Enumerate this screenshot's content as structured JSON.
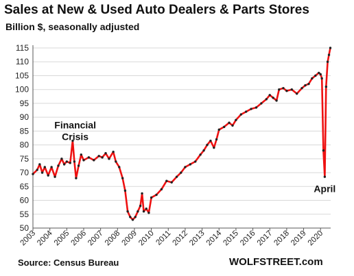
{
  "header": {
    "title": "Sales at New & Used Auto Dealers & Parts Stores",
    "subtitle": "Billion $, seasonally adjusted"
  },
  "footer": {
    "source": "Source: Census Bureau",
    "credit": "WOLFSTREET.com"
  },
  "colors": {
    "line": "#ee1111",
    "marker": "#222222",
    "grid": "#d8d8d8",
    "axis": "#555555"
  },
  "chart_data": {
    "type": "line",
    "title": "Sales at New & Used Auto Dealers & Parts Stores",
    "subtitle": "Billion $, seasonally adjusted",
    "xlabel": "",
    "ylabel": "",
    "ylim": [
      50,
      115
    ],
    "xlim": [
      2003,
      2020.6
    ],
    "yticks": [
      50,
      55,
      60,
      65,
      70,
      75,
      80,
      85,
      90,
      95,
      100,
      105,
      110,
      115
    ],
    "xticks": [
      "2003",
      "2004",
      "2005",
      "2006",
      "2007",
      "2008",
      "2009",
      "2010",
      "2011",
      "2012",
      "2013",
      "2014",
      "2015",
      "2016",
      "2017",
      "2018",
      "2019",
      "2020"
    ],
    "grid": true,
    "series": [
      {
        "values": [
          [
            2003.0,
            69.5
          ],
          [
            2003.25,
            71
          ],
          [
            2003.4,
            73
          ],
          [
            2003.55,
            70
          ],
          [
            2003.7,
            72
          ],
          [
            2003.9,
            69
          ],
          [
            2004.1,
            72
          ],
          [
            2004.3,
            68.5
          ],
          [
            2004.5,
            72.5
          ],
          [
            2004.7,
            75
          ],
          [
            2004.85,
            73
          ],
          [
            2005.0,
            74
          ],
          [
            2005.2,
            73.5
          ],
          [
            2005.35,
            81.5
          ],
          [
            2005.45,
            74
          ],
          [
            2005.55,
            68
          ],
          [
            2005.7,
            72.5
          ],
          [
            2005.85,
            76.5
          ],
          [
            2006.0,
            74.5
          ],
          [
            2006.3,
            75.5
          ],
          [
            2006.6,
            74.5
          ],
          [
            2006.9,
            76
          ],
          [
            2007.1,
            75.5
          ],
          [
            2007.3,
            77
          ],
          [
            2007.5,
            75
          ],
          [
            2007.75,
            77.5
          ],
          [
            2007.9,
            74
          ],
          [
            2008.1,
            72
          ],
          [
            2008.3,
            68
          ],
          [
            2008.45,
            63.5
          ],
          [
            2008.6,
            56
          ],
          [
            2008.75,
            54
          ],
          [
            2008.9,
            53
          ],
          [
            2009.05,
            54
          ],
          [
            2009.2,
            56
          ],
          [
            2009.35,
            58
          ],
          [
            2009.45,
            62.5
          ],
          [
            2009.55,
            56
          ],
          [
            2009.7,
            57
          ],
          [
            2009.85,
            55.5
          ],
          [
            2010.0,
            61
          ],
          [
            2010.3,
            62
          ],
          [
            2010.6,
            64
          ],
          [
            2010.9,
            67
          ],
          [
            2011.2,
            66.5
          ],
          [
            2011.5,
            68.5
          ],
          [
            2011.75,
            70
          ],
          [
            2012.0,
            72
          ],
          [
            2012.3,
            73
          ],
          [
            2012.6,
            74
          ],
          [
            2012.9,
            76.5
          ],
          [
            2013.1,
            78
          ],
          [
            2013.3,
            80
          ],
          [
            2013.5,
            81.5
          ],
          [
            2013.7,
            79
          ],
          [
            2013.85,
            82
          ],
          [
            2014.0,
            85.5
          ],
          [
            2014.3,
            86.5
          ],
          [
            2014.6,
            88
          ],
          [
            2014.8,
            87
          ],
          [
            2015.0,
            89
          ],
          [
            2015.3,
            91
          ],
          [
            2015.6,
            92
          ],
          [
            2015.9,
            93
          ],
          [
            2016.2,
            93.5
          ],
          [
            2016.5,
            95
          ],
          [
            2016.8,
            96.5
          ],
          [
            2017.0,
            98
          ],
          [
            2017.2,
            97
          ],
          [
            2017.4,
            96
          ],
          [
            2017.55,
            100
          ],
          [
            2017.8,
            100.5
          ],
          [
            2018.0,
            99.5
          ],
          [
            2018.3,
            100
          ],
          [
            2018.6,
            98.5
          ],
          [
            2018.9,
            100.5
          ],
          [
            2019.1,
            101.5
          ],
          [
            2019.3,
            102
          ],
          [
            2019.5,
            104
          ],
          [
            2019.7,
            105
          ],
          [
            2019.9,
            106
          ],
          [
            2020.0,
            105.5
          ],
          [
            2020.08,
            104
          ],
          [
            2020.17,
            78
          ],
          [
            2020.25,
            68.5
          ],
          [
            2020.33,
            101
          ],
          [
            2020.42,
            110
          ],
          [
            2020.5,
            112.5
          ],
          [
            2020.58,
            115
          ]
        ]
      }
    ],
    "annotations": [
      {
        "lines": [
          "Financial",
          "Crisis"
        ],
        "x": 2005.5,
        "y": 86
      },
      {
        "lines": [
          "April"
        ],
        "x": 2020.25,
        "y": 63
      }
    ]
  }
}
